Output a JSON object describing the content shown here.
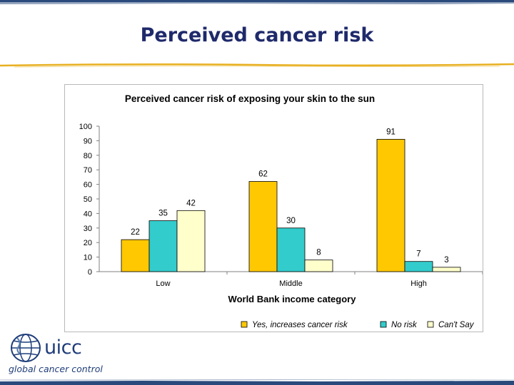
{
  "slide": {
    "title": "Perceived cancer risk"
  },
  "logo": {
    "wordmark": "uicc",
    "tagline": "global cancer control"
  },
  "colors": {
    "title": "#1f2a6b",
    "band": "#2a4a7c",
    "rule": "#e8b020"
  },
  "chart_data": {
    "type": "bar",
    "title": "Perceived cancer risk of exposing your skin to the sun",
    "xlabel": "World Bank income category",
    "ylabel": "",
    "categories": [
      "Low",
      "Middle",
      "High"
    ],
    "ylim": [
      0,
      100
    ],
    "yticks": [
      0,
      10,
      20,
      30,
      40,
      50,
      60,
      70,
      80,
      90,
      100
    ],
    "grid": false,
    "legend_position": "bottom-right",
    "series": [
      {
        "name": "Yes, increases cancer risk",
        "color": "#ffc800",
        "values": [
          22,
          62,
          91
        ]
      },
      {
        "name": "No risk",
        "color": "#33cccc",
        "values": [
          35,
          30,
          7
        ]
      },
      {
        "name": "Can't Say",
        "color": "#ffffcc",
        "values": [
          42,
          8,
          3
        ]
      }
    ]
  }
}
